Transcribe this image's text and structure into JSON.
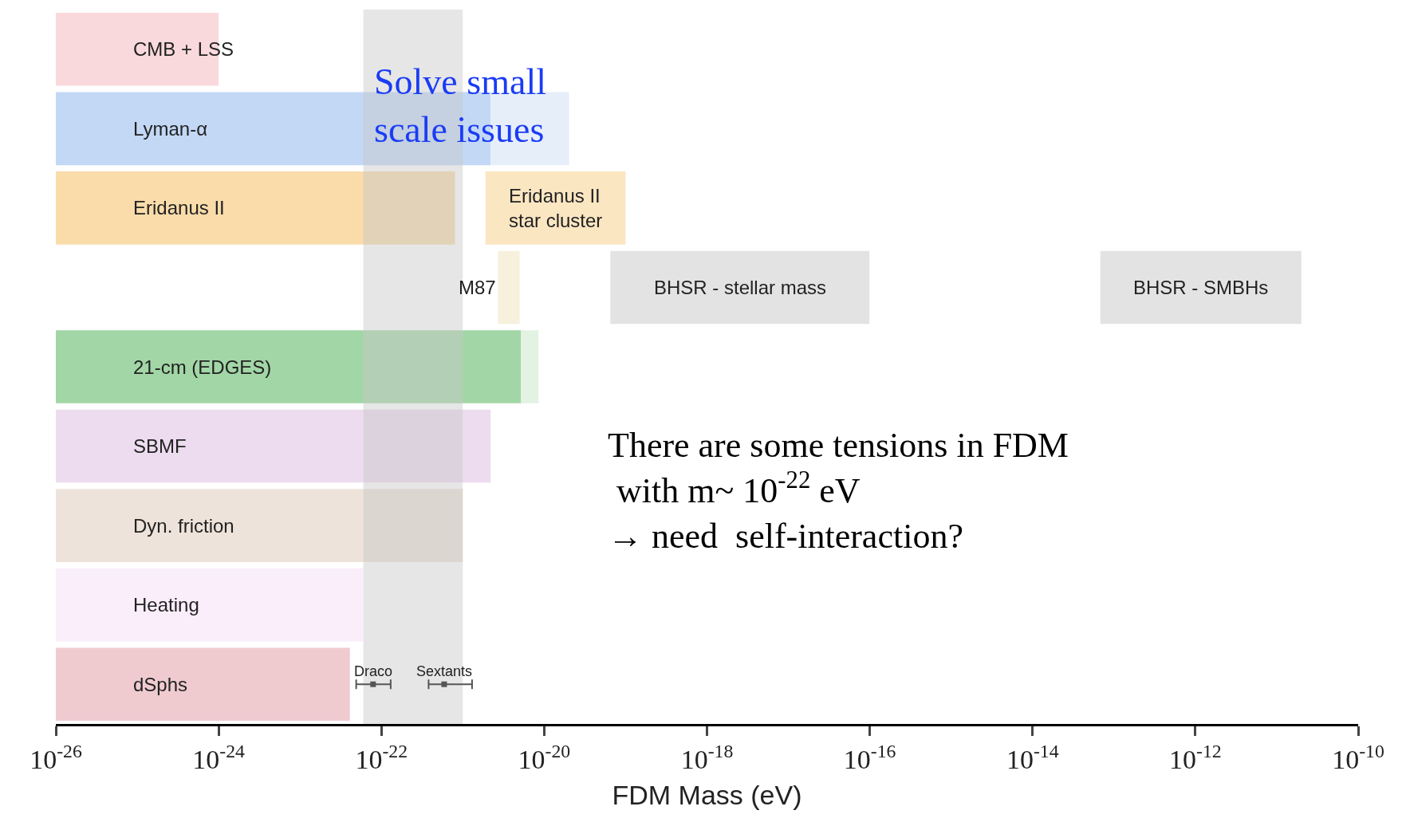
{
  "chart_data": {
    "type": "bar",
    "orientation": "horizontal",
    "xlabel": "FDM Mass (eV)",
    "categories": [
      "CMB + LSS",
      "Lyman-α",
      "Eridanus II",
      null,
      "21-cm (EDGES)",
      "SBMF",
      "Dyn. friction",
      "Heating",
      "dSphs"
    ],
    "log": "x",
    "xlim": [
      1e-26,
      1e-10
    ],
    "xticks": [
      {
        "value": 1e-26,
        "label": "10$^{-26}$"
      },
      {
        "value": 1e-24,
        "label": "10$^{-24}$"
      },
      {
        "value": 1e-22,
        "label": "10$^{-22}$"
      },
      {
        "value": 1e-20,
        "label": "10$^{-20}$"
      },
      {
        "value": 1e-18,
        "label": "10$^{-18}$"
      },
      {
        "value": 1e-16,
        "label": "10$^{-16}$"
      },
      {
        "value": 1e-14,
        "label": "10$^{-14}$"
      },
      {
        "value": 1e-12,
        "label": "10$^{-12}$"
      },
      {
        "value": 1e-10,
        "label": "10$^{-10}$"
      }
    ],
    "tick_labels": "x",
    "series": [
      {
        "colors": [
          "#f9d9dc",
          "#c3d8f5",
          "#f9dcaa",
          null,
          "#a2d6a6",
          "#eddcf0",
          "#eee3da",
          "#faeefa",
          "#efcbd0"
        ],
        "values": [
          9.9e-25,
          2.2e-21,
          8e-22,
          null,
          5.2e-21,
          2.2e-21,
          1e-21,
          6e-23,
          4.1e-23
        ],
        "base": [
          1e-26,
          1e-26,
          1e-26,
          null,
          1e-26,
          1e-26,
          1e-26,
          1e-26,
          1e-26
        ]
      },
      {
        "color": "#e6eefa",
        "values": [
          null,
          1.8e-20,
          null,
          null,
          null,
          null,
          null,
          null,
          null
        ],
        "base": [
          null,
          2.2e-21,
          null,
          null,
          null,
          null,
          null,
          null,
          null
        ]
      },
      {
        "name": "Eridanus II\nstar cluster",
        "color": "#fbe6c2",
        "values": [
          null,
          null,
          9.8e-20,
          null,
          null,
          null,
          null,
          null,
          null
        ],
        "base": [
          null,
          null,
          1.9e-21,
          null,
          null,
          null,
          null,
          null,
          null
        ]
      },
      {
        "name": "M87",
        "color": "#f7f0dc",
        "values": [
          null,
          null,
          null,
          2.3e-21,
          null,
          null,
          null,
          null,
          null
        ],
        "base": [
          null,
          null,
          null,
          2.7e-21,
          null,
          null,
          null,
          null,
          null
        ]
      },
      {
        "name": "BHSR - stellar mass",
        "color": "#e3e3e3",
        "values": [
          null,
          null,
          null,
          9.9e-17,
          null,
          null,
          null,
          null,
          null
        ],
        "base": [
          null,
          null,
          null,
          6.5e-20,
          null,
          null,
          null,
          null,
          null
        ]
      },
      {
        "name": "BHSR - SMBHs",
        "color": "#e3e3e3",
        "values": [
          null,
          null,
          null,
          2e-11,
          null,
          null,
          null,
          null,
          null
        ],
        "base": [
          null,
          null,
          null,
          6.8e-14,
          null,
          null,
          null,
          null,
          null
        ]
      },
      {
        "color": "#e2f2e3",
        "values": [
          null,
          null,
          null,
          null,
          3.3e-21,
          null,
          null,
          null,
          null
        ],
        "base": [
          null,
          null,
          null,
          null,
          5.2e-21,
          null,
          null,
          null,
          null
        ]
      },
      {
        "type": "scatter",
        "name": "Draco",
        "color": "#555555",
        "marker": "square",
        "values": [
          null,
          null,
          null,
          null,
          null,
          null,
          null,
          null,
          7.9e-23
        ],
        "errors": [
          null,
          null,
          null,
          null,
          null,
          null,
          null,
          null,
          [
            4.9e-23,
            1.3e-22
          ]
        ]
      },
      {
        "type": "scatter",
        "name": "Sextants",
        "color": "#555555",
        "marker": "square",
        "values": [
          null,
          null,
          null,
          null,
          null,
          null,
          null,
          null,
          5.9e-22
        ],
        "errors": [
          null,
          null,
          null,
          null,
          null,
          null,
          null,
          null,
          [
            3.8e-22,
            1.3e-21
          ]
        ]
      }
    ],
    "bands": [
      {
        "axis": "x",
        "from": 6e-23,
        "to": 1e-21,
        "color": "#c8c8c8"
      }
    ],
    "annotations": [
      "Solve small\nscale issues",
      "There are some tensions in FDM\n with m~ 10$^{-22}$ eV\n→ need  self-interaction?"
    ]
  }
}
